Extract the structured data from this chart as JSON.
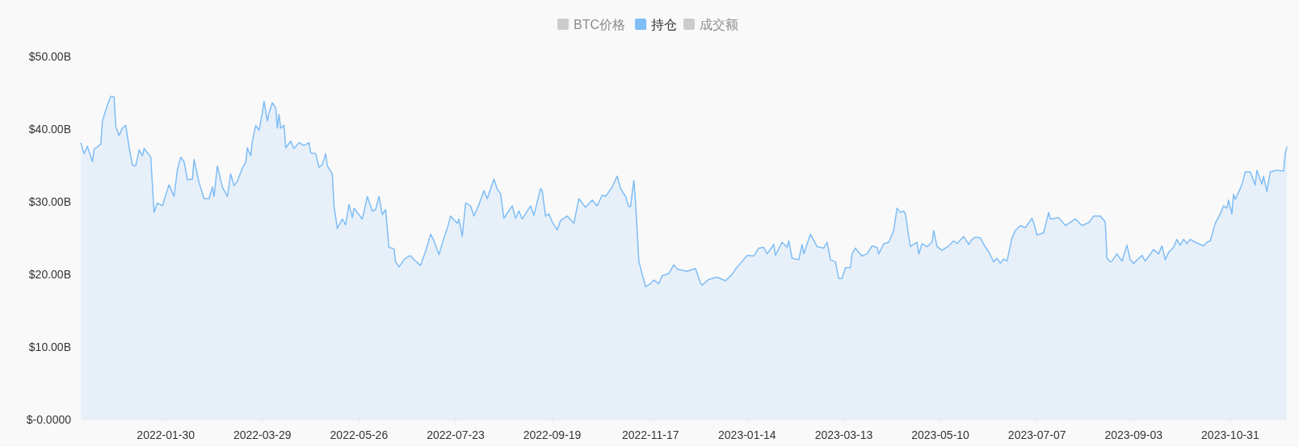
{
  "chart_data": {
    "type": "area",
    "legend": "top",
    "x": [
      "2021-12-10",
      "2021-12-12",
      "2021-12-14",
      "2021-12-17",
      "2021-12-18",
      "2021-12-22",
      "2021-12-23",
      "2021-12-26",
      "2021-12-28",
      "2021-12-30",
      "2021-12-31",
      "2022-01-02",
      "2022-01-04",
      "2022-01-06",
      "2022-01-08",
      "2022-01-10",
      "2022-01-12",
      "2022-01-14",
      "2022-01-16",
      "2022-01-17",
      "2022-01-21",
      "2022-01-23",
      "2022-01-25",
      "2022-01-28",
      "2022-01-30",
      "2022-02-01",
      "2022-02-04",
      "2022-02-06",
      "2022-02-08",
      "2022-02-10",
      "2022-02-12",
      "2022-02-15",
      "2022-02-16",
      "2022-02-19",
      "2022-02-22",
      "2022-02-25",
      "2022-02-27",
      "2022-02-28",
      "2022-03-02",
      "2022-03-05",
      "2022-03-08",
      "2022-03-10",
      "2022-03-12",
      "2022-03-14",
      "2022-03-17",
      "2022-03-19",
      "2022-03-20",
      "2022-03-22",
      "2022-03-23",
      "2022-03-25",
      "2022-03-27",
      "2022-03-29",
      "2022-03-30",
      "2022-04-01",
      "2022-04-02",
      "2022-04-04",
      "2022-04-06",
      "2022-04-07",
      "2022-04-08",
      "2022-04-09",
      "2022-04-11",
      "2022-04-12",
      "2022-04-15",
      "2022-04-17",
      "2022-04-20",
      "2022-04-23",
      "2022-04-26",
      "2022-04-27",
      "2022-04-30",
      "2022-05-02",
      "2022-05-04",
      "2022-05-06",
      "2022-05-07",
      "2022-05-10",
      "2022-05-11",
      "2022-05-13",
      "2022-05-16",
      "2022-05-18",
      "2022-05-20",
      "2022-05-22",
      "2022-05-23",
      "2022-05-28",
      "2022-05-31",
      "2022-06-03",
      "2022-06-05",
      "2022-06-07",
      "2022-06-09",
      "2022-06-11",
      "2022-06-13",
      "2022-06-16",
      "2022-06-17",
      "2022-06-19",
      "2022-06-22",
      "2022-06-25",
      "2022-06-26",
      "2022-06-29",
      "2022-07-02",
      "2022-07-05",
      "2022-07-08",
      "2022-07-10",
      "2022-07-13",
      "2022-07-16",
      "2022-07-18",
      "2022-07-20",
      "2022-07-24",
      "2022-07-25",
      "2022-07-27",
      "2022-07-29",
      "2022-08-01",
      "2022-08-03",
      "2022-08-06",
      "2022-08-09",
      "2022-08-11",
      "2022-08-15",
      "2022-08-17",
      "2022-08-19",
      "2022-08-21",
      "2022-08-26",
      "2022-08-28",
      "2022-08-30",
      "2022-09-01",
      "2022-09-06",
      "2022-09-08",
      "2022-09-12",
      "2022-09-13",
      "2022-09-15",
      "2022-09-17",
      "2022-09-19",
      "2022-09-22",
      "2022-09-24",
      "2022-09-28",
      "2022-10-02",
      "2022-10-05",
      "2022-10-09",
      "2022-10-13",
      "2022-10-16",
      "2022-10-19",
      "2022-10-21",
      "2022-10-25",
      "2022-10-28",
      "2022-10-30",
      "2022-11-02",
      "2022-11-04",
      "2022-11-05",
      "2022-11-07",
      "2022-11-08",
      "2022-11-10",
      "2022-11-12",
      "2022-11-14",
      "2022-11-17",
      "2022-11-19",
      "2022-11-22",
      "2022-11-24",
      "2022-11-28",
      "2022-12-01",
      "2022-12-03",
      "2022-12-09",
      "2022-12-14",
      "2022-12-17",
      "2022-12-18",
      "2022-12-22",
      "2022-12-27",
      "2023-01-01",
      "2023-01-05",
      "2023-01-07",
      "2023-01-10",
      "2023-01-14",
      "2023-01-18",
      "2023-01-21",
      "2023-01-24",
      "2023-01-26",
      "2023-01-30",
      "2023-01-31",
      "2023-02-04",
      "2023-02-07",
      "2023-02-08",
      "2023-02-10",
      "2023-02-14",
      "2023-02-16",
      "2023-02-17",
      "2023-02-21",
      "2023-02-25",
      "2023-03-01",
      "2023-03-03",
      "2023-03-05",
      "2023-03-08",
      "2023-03-10",
      "2023-03-12",
      "2023-03-14",
      "2023-03-17",
      "2023-03-18",
      "2023-03-20",
      "2023-03-22",
      "2023-03-24",
      "2023-03-27",
      "2023-03-30",
      "2023-04-02",
      "2023-04-03",
      "2023-04-06",
      "2023-04-09",
      "2023-04-12",
      "2023-04-14",
      "2023-04-16",
      "2023-04-18",
      "2023-04-19",
      "2023-04-21",
      "2023-04-22",
      "2023-04-24",
      "2023-04-26",
      "2023-04-27",
      "2023-04-29",
      "2023-05-02",
      "2023-05-05",
      "2023-05-06",
      "2023-05-08",
      "2023-05-11",
      "2023-05-15",
      "2023-05-18",
      "2023-05-20",
      "2023-05-24",
      "2023-05-27",
      "2023-05-29",
      "2023-05-31",
      "2023-06-03",
      "2023-06-05",
      "2023-06-08",
      "2023-06-11",
      "2023-06-13",
      "2023-06-15",
      "2023-06-17",
      "2023-06-19",
      "2023-06-22",
      "2023-06-24",
      "2023-06-27",
      "2023-06-30",
      "2023-07-04",
      "2023-07-05",
      "2023-07-07",
      "2023-07-11",
      "2023-07-14",
      "2023-07-15",
      "2023-07-20",
      "2023-07-24",
      "2023-07-30",
      "2023-08-03",
      "2023-08-07",
      "2023-08-10",
      "2023-08-14",
      "2023-08-17",
      "2023-08-18",
      "2023-08-20",
      "2023-08-21",
      "2023-08-24",
      "2023-08-27",
      "2023-08-30",
      "2023-09-01",
      "2023-09-03",
      "2023-09-08",
      "2023-09-10",
      "2023-09-15",
      "2023-09-18",
      "2023-09-20",
      "2023-09-22",
      "2023-09-24",
      "2023-09-27",
      "2023-09-29",
      "2023-10-01",
      "2023-10-03",
      "2023-10-05",
      "2023-10-07",
      "2023-10-10",
      "2023-10-15",
      "2023-10-17",
      "2023-10-19",
      "2023-10-22",
      "2023-10-25",
      "2023-10-27",
      "2023-10-29",
      "2023-10-30",
      "2023-11-01",
      "2023-11-02",
      "2023-11-03",
      "2023-11-07",
      "2023-11-09",
      "2023-11-12",
      "2023-11-15",
      "2023-11-16",
      "2023-11-19",
      "2023-11-20",
      "2023-11-22",
      "2023-11-24",
      "2023-11-28",
      "2023-12-02",
      "2023-12-03",
      "2023-12-04"
    ],
    "series": [
      {
        "name": "BTC价格",
        "color": "#cccccc",
        "values": [
          null,
          null,
          null,
          null,
          null,
          null,
          null,
          null,
          null,
          null,
          null,
          null,
          null,
          null,
          null,
          null,
          null,
          null,
          null,
          null,
          null,
          null,
          null,
          null,
          null,
          null,
          null,
          null,
          null,
          null,
          null,
          null,
          null,
          null,
          null,
          null,
          null,
          null,
          null,
          null,
          null,
          null,
          null,
          null,
          null,
          null,
          null,
          null,
          null,
          null,
          null,
          null,
          null,
          null,
          null,
          null,
          null,
          null,
          null,
          null,
          null,
          null,
          null,
          null,
          null,
          null,
          null,
          null,
          null,
          null,
          null,
          null,
          null,
          null,
          null,
          null,
          null,
          null,
          null,
          null,
          null,
          null,
          null,
          null,
          null,
          null,
          null,
          null,
          null,
          null,
          null,
          null,
          null,
          null,
          null,
          null,
          null,
          null,
          null,
          null,
          null,
          null,
          null,
          null,
          null,
          null,
          null,
          null,
          null,
          null,
          null,
          null,
          null,
          null,
          null,
          null,
          null,
          null,
          null,
          null,
          null,
          null,
          null,
          null,
          null,
          null,
          null,
          null,
          null,
          null,
          null,
          null,
          null,
          null,
          null,
          null,
          null,
          null,
          null,
          null,
          null,
          null,
          null,
          null,
          null,
          null,
          null,
          null,
          null,
          null,
          null,
          null,
          null,
          null,
          null,
          null,
          null,
          null,
          null,
          null,
          null,
          null,
          null,
          null,
          null,
          null,
          null,
          null,
          null,
          null,
          null,
          null,
          null,
          null,
          null,
          null,
          null,
          null,
          null,
          null,
          null,
          null,
          null,
          null,
          null,
          null,
          null,
          null,
          null,
          null,
          null,
          null,
          null,
          null,
          null,
          null,
          null,
          null,
          null,
          null,
          null,
          null,
          null,
          null,
          null,
          null,
          null,
          null,
          null,
          null,
          null,
          null,
          null,
          null,
          null,
          null,
          null,
          null,
          null,
          null,
          null,
          null,
          null,
          null,
          null,
          null,
          null,
          null,
          null,
          null,
          null,
          null,
          null,
          null,
          null,
          null,
          null,
          null,
          null,
          null,
          null,
          null,
          null,
          null,
          null,
          null,
          null,
          null,
          null,
          null,
          null,
          null,
          null,
          null,
          null,
          null,
          null,
          null,
          null,
          null,
          null,
          null,
          null,
          null,
          null,
          null,
          null,
          null,
          null,
          null,
          null,
          null,
          null,
          null,
          null,
          null,
          null,
          null,
          null,
          null,
          null,
          null,
          null,
          null,
          null,
          null,
          null,
          null,
          null,
          null,
          null,
          null,
          null,
          null,
          null
        ]
      },
      {
        "name": "持仓",
        "color": "#7fbdf5",
        "values": [
          38.1,
          36.6,
          37.6,
          35.5,
          37.2,
          37.9,
          41.1,
          43.3,
          44.5,
          44.4,
          40.3,
          39.1,
          40.1,
          40.5,
          37.5,
          35.0,
          34.9,
          37.1,
          36.3,
          37.3,
          36.1,
          28.5,
          29.8,
          29.4,
          30.9,
          32.3,
          30.7,
          34.4,
          36.1,
          35.5,
          33.0,
          33.1,
          35.8,
          32.6,
          30.4,
          30.4,
          32.0,
          30.7,
          34.9,
          32.0,
          30.7,
          33.8,
          32.2,
          32.8,
          34.6,
          35.4,
          37.4,
          36.3,
          38.3,
          40.5,
          39.8,
          42.2,
          43.8,
          41.1,
          42.2,
          43.6,
          42.9,
          40.1,
          42.0,
          40.1,
          40.5,
          37.4,
          38.3,
          37.3,
          38.1,
          37.7,
          38.1,
          36.7,
          36.6,
          34.7,
          35.1,
          36.6,
          34.9,
          33.8,
          29.4,
          26.3,
          27.6,
          26.8,
          29.6,
          27.8,
          29.1,
          27.6,
          30.7,
          28.7,
          28.9,
          30.7,
          28.2,
          28.9,
          23.7,
          23.5,
          21.7,
          21.0,
          22.0,
          22.5,
          22.5,
          21.8,
          21.2,
          23.2,
          25.5,
          24.6,
          22.7,
          25.0,
          26.3,
          28.0,
          27.0,
          27.6,
          25.2,
          29.8,
          29.4,
          28.0,
          29.6,
          31.5,
          30.4,
          33.1,
          31.7,
          31.1,
          27.7,
          29.4,
          27.7,
          28.7,
          27.6,
          29.4,
          28.1,
          31.8,
          31.5,
          28.0,
          28.3,
          27.2,
          26.1,
          27.4,
          28.0,
          27.0,
          30.4,
          29.2,
          30.2,
          29.4,
          30.9,
          30.7,
          32.0,
          33.5,
          31.8,
          30.7,
          29.3,
          29.3,
          32.9,
          30.0,
          21.8,
          20.0,
          18.3,
          18.7,
          19.2,
          18.7,
          19.8,
          20.1,
          21.3,
          20.7,
          20.4,
          20.8,
          18.8,
          18.5,
          19.3,
          19.6,
          19.1,
          20.0,
          20.7,
          21.5,
          22.6,
          22.5,
          23.6,
          23.7,
          22.8,
          24.1,
          22.6,
          24.4,
          23.7,
          24.6,
          22.2,
          22.0,
          24.1,
          22.8,
          25.5,
          23.8,
          23.6,
          24.4,
          22.0,
          21.7,
          19.4,
          19.4,
          20.9,
          20.9,
          22.8,
          23.6,
          23.0,
          22.5,
          22.8,
          23.9,
          23.7,
          22.8,
          24.2,
          24.4,
          26.0,
          29.1,
          28.5,
          28.7,
          28.3,
          25.2,
          23.8,
          24.1,
          24.4,
          22.8,
          24.2,
          23.8,
          24.4,
          26.0,
          23.8,
          23.3,
          23.9,
          24.6,
          24.2,
          25.2,
          24.1,
          24.8,
          25.1,
          25.0,
          24.1,
          23.1,
          21.7,
          22.2,
          21.5,
          22.1,
          21.8,
          25.0,
          26.0,
          26.7,
          26.4,
          27.7,
          27.1,
          25.4,
          25.7,
          28.5,
          27.6,
          27.8,
          26.7,
          27.6,
          26.7,
          27.1,
          28.0,
          28.0,
          27.2,
          22.2,
          21.7,
          21.8,
          22.8,
          21.8,
          24.0,
          22.0,
          21.5,
          22.6,
          21.8,
          23.4,
          22.8,
          23.9,
          22.0,
          23.0,
          23.7,
          24.8,
          24.0,
          24.8,
          24.2,
          24.8,
          24.4,
          23.9,
          24.4,
          24.6,
          27.0,
          28.3,
          29.4,
          29.1,
          30.2,
          28.3,
          31.0,
          30.3,
          32.3,
          34.1,
          34.1,
          32.3,
          34.3,
          32.4,
          33.5,
          31.4,
          34.1,
          34.3,
          34.2,
          36.6,
          37.6
        ]
      },
      {
        "name": "成交额",
        "color": "#cccccc",
        "values": [
          null,
          null,
          null,
          null,
          null,
          null,
          null,
          null,
          null,
          null,
          null,
          null,
          null,
          null,
          null,
          null,
          null,
          null,
          null,
          null,
          null,
          null,
          null,
          null,
          null,
          null,
          null,
          null,
          null,
          null,
          null,
          null,
          null,
          null,
          null,
          null,
          null,
          null,
          null,
          null,
          null,
          null,
          null,
          null,
          null,
          null,
          null,
          null,
          null,
          null,
          null,
          null,
          null,
          null,
          null,
          null,
          null,
          null,
          null,
          null,
          null,
          null,
          null,
          null,
          null,
          null,
          null,
          null,
          null,
          null,
          null,
          null,
          null,
          null,
          null,
          null,
          null,
          null,
          null,
          null,
          null,
          null,
          null,
          null,
          null,
          null,
          null,
          null,
          null,
          null,
          null,
          null,
          null,
          null,
          null,
          null,
          null,
          null,
          null,
          null,
          null,
          null,
          null,
          null,
          null,
          null,
          null,
          null,
          null,
          null,
          null,
          null,
          null,
          null,
          null,
          null,
          null,
          null,
          null,
          null,
          null,
          null,
          null,
          null,
          null,
          null,
          null,
          null,
          null,
          null,
          null,
          null,
          null,
          null,
          null,
          null,
          null,
          null,
          null,
          null,
          null,
          null,
          null,
          null,
          null,
          null,
          null,
          null,
          null,
          null,
          null,
          null,
          null,
          null,
          null,
          null,
          null,
          null,
          null,
          null,
          null,
          null,
          null,
          null,
          null,
          null,
          null,
          null,
          null,
          null,
          null,
          null,
          null,
          null,
          null,
          null,
          null,
          null,
          null,
          null,
          null,
          null,
          null,
          null,
          null,
          null,
          null,
          null,
          null,
          null,
          null,
          null,
          null,
          null,
          null,
          null,
          null,
          null,
          null,
          null,
          null,
          null,
          null,
          null,
          null,
          null,
          null,
          null,
          null,
          null,
          null,
          null,
          null,
          null,
          null,
          null,
          null,
          null,
          null,
          null,
          null,
          null,
          null,
          null,
          null,
          null,
          null,
          null,
          null,
          null,
          null,
          null,
          null,
          null,
          null,
          null,
          null,
          null,
          null,
          null,
          null,
          null,
          null,
          null,
          null,
          null,
          null,
          null,
          null,
          null,
          null,
          null,
          null,
          null,
          null,
          null,
          null,
          null,
          null,
          null,
          null,
          null,
          null,
          null,
          null,
          null,
          null,
          null,
          null,
          null,
          null,
          null,
          null,
          null,
          null,
          null,
          null,
          null,
          null,
          null,
          null,
          null,
          null,
          null,
          null,
          null,
          null,
          null,
          null,
          null,
          null,
          null,
          null,
          null,
          null
        ]
      }
    ],
    "xlim": [
      "2021-12-10",
      "2023-12-04"
    ],
    "xticks": [
      "2022-01-30",
      "2022-03-29",
      "2022-05-26",
      "2022-07-23",
      "2022-09-19",
      "2022-11-17",
      "2023-01-14",
      "2023-03-13",
      "2023-05-10",
      "2023-07-07",
      "2023-09-03",
      "2023-10-31"
    ],
    "ylim": [
      0,
      50
    ],
    "yticks": [
      {
        "value": 0,
        "label": "$-0.0000"
      },
      {
        "value": 10,
        "label": "$10.00B"
      },
      {
        "value": 20,
        "label": "$20.00B"
      },
      {
        "value": 30,
        "label": "$30.00B"
      },
      {
        "value": 40,
        "label": "$40.00B"
      },
      {
        "value": 50,
        "label": "$50.00B"
      }
    ]
  }
}
